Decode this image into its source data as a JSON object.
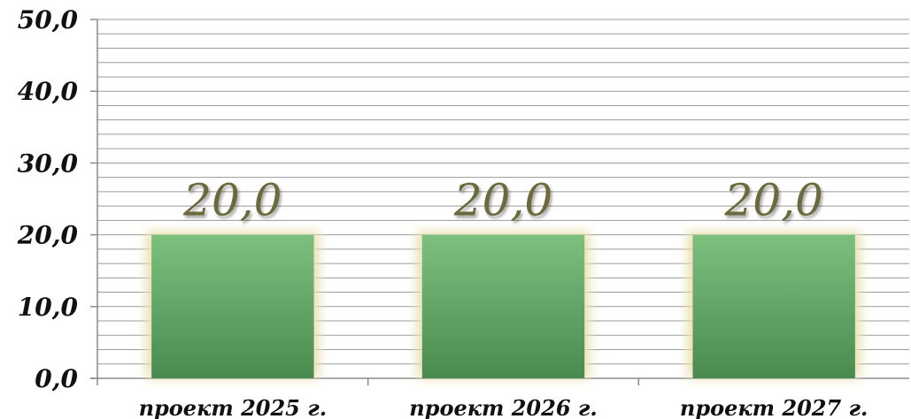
{
  "chart_data": {
    "type": "bar",
    "categories": [
      "проект 2025 г.",
      "проект 2026 г.",
      "проект 2027 г."
    ],
    "values": [
      20.0,
      20.0,
      20.0
    ],
    "data_labels": [
      "20,0",
      "20,0",
      "20,0"
    ],
    "y_tick_values": [
      0,
      10,
      20,
      30,
      40,
      50
    ],
    "y_tick_labels": [
      "0,0",
      "10,0",
      "20,0",
      "30,0",
      "40,0",
      "50,0"
    ],
    "ylim": [
      0,
      50
    ],
    "minor_grid_step": 2,
    "grid": true,
    "legend": "none",
    "title": "",
    "xlabel": "",
    "ylabel": ""
  },
  "colors": {
    "bar_top": "#7cc07e",
    "bar_bottom": "#4a8a50",
    "bar_glow": "#e8dfb0",
    "grid": "#9a9a9a",
    "axis": "#8a8a8a",
    "data_label": "#6b6b3c"
  }
}
